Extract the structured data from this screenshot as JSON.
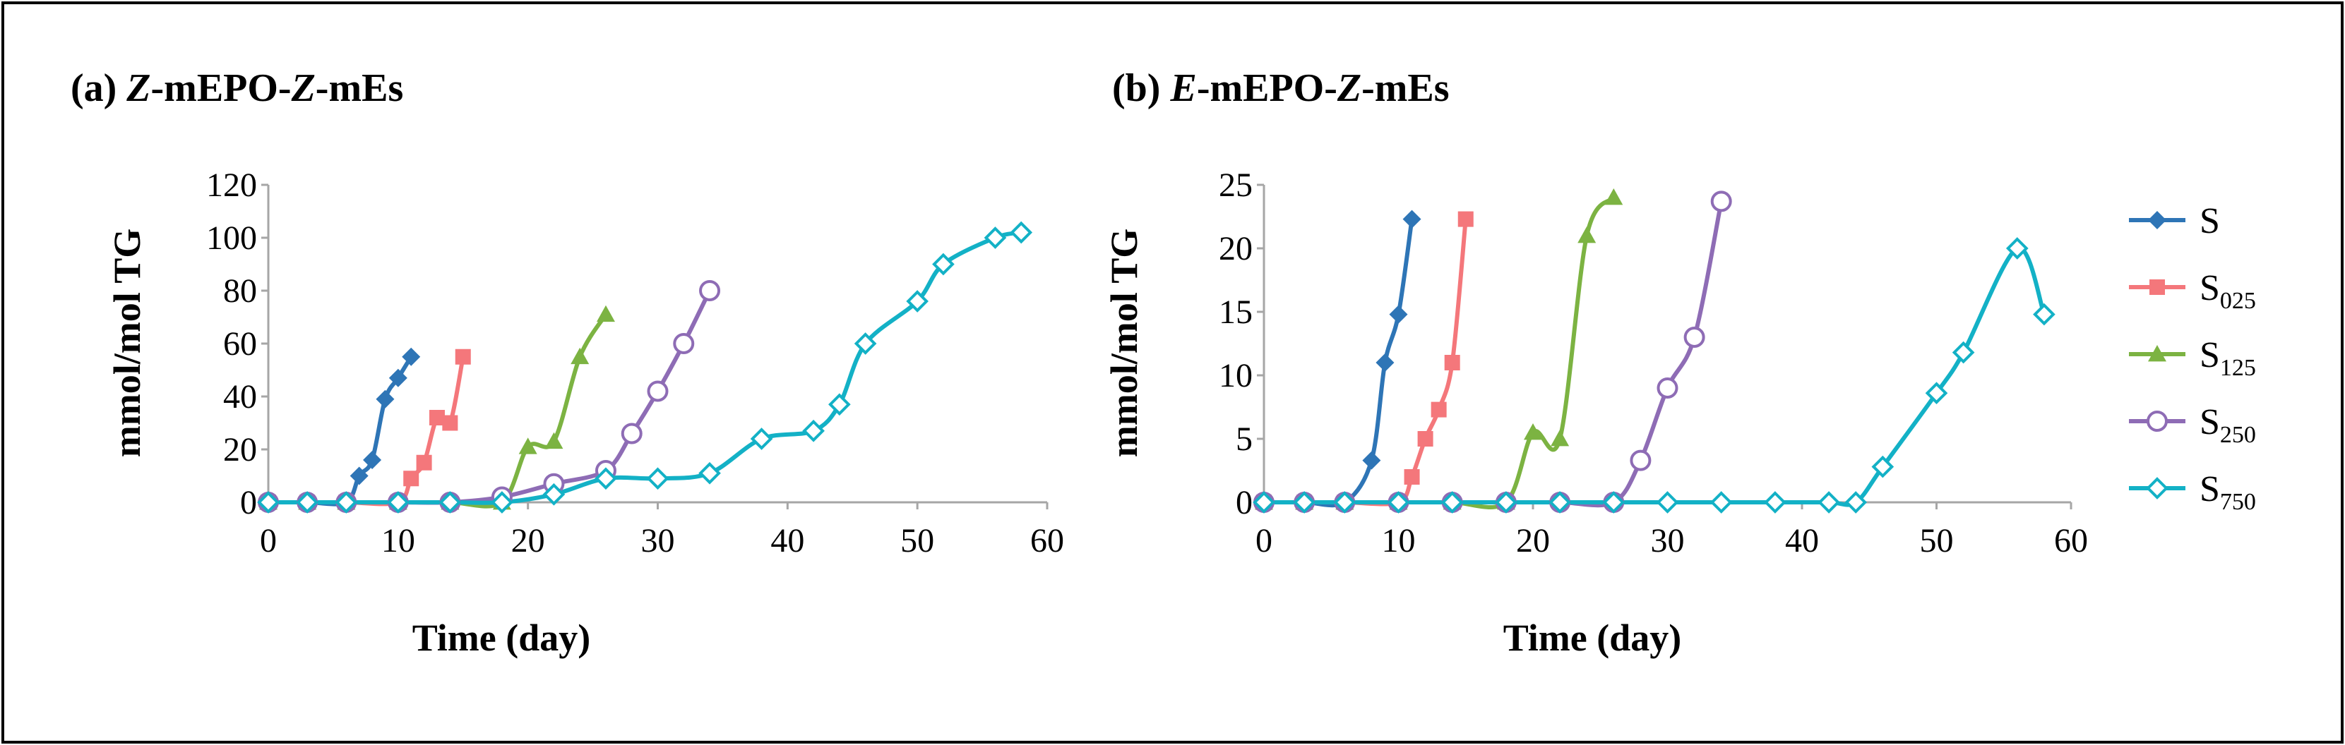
{
  "legend": [
    {
      "key": "S",
      "base": "S",
      "sub": "",
      "color": "#2e75b6",
      "marker": "diamond-filled"
    },
    {
      "key": "S025",
      "base": "S",
      "sub": "025",
      "color": "#f4777b",
      "marker": "square-filled"
    },
    {
      "key": "S125",
      "base": "S",
      "sub": "125",
      "color": "#7cb342",
      "marker": "triangle-filled"
    },
    {
      "key": "S250",
      "base": "S",
      "sub": "250",
      "color": "#8e6cb5",
      "marker": "circle-open"
    },
    {
      "key": "S750",
      "base": "S",
      "sub": "750",
      "color": "#13b1c6",
      "marker": "diamond-open"
    }
  ],
  "chart_data": [
    {
      "type": "line",
      "title_label": "(a) ",
      "title_italic": "Z",
      "title_mid": "-mEPO-",
      "title_italic2": "Z",
      "title_end": "-mEs",
      "xlabel": "Time (day)",
      "ylabel": "mmol/mol TG",
      "xlim": [
        0,
        60
      ],
      "ylim": [
        0,
        120
      ],
      "xticks": [
        0,
        10,
        20,
        30,
        40,
        50,
        60
      ],
      "yticks": [
        0,
        20,
        40,
        60,
        80,
        100,
        120
      ],
      "series": [
        {
          "name": "S",
          "x": [
            0,
            3,
            6,
            7,
            8,
            9,
            10,
            11
          ],
          "y": [
            0,
            0,
            0,
            10,
            16,
            39,
            47,
            55
          ]
        },
        {
          "name": "S025",
          "x": [
            0,
            3,
            6,
            10,
            11,
            12,
            13,
            14,
            15
          ],
          "y": [
            0,
            0,
            0,
            0,
            9,
            15,
            32,
            30,
            55
          ]
        },
        {
          "name": "S125",
          "x": [
            0,
            3,
            6,
            10,
            14,
            18,
            20,
            22,
            24,
            26
          ],
          "y": [
            0,
            0,
            0,
            0,
            0,
            0,
            21,
            23,
            55,
            71
          ]
        },
        {
          "name": "S250",
          "x": [
            0,
            3,
            6,
            10,
            14,
            18,
            22,
            26,
            28,
            30,
            32,
            34
          ],
          "y": [
            0,
            0,
            0,
            0,
            0,
            2,
            7,
            12,
            26,
            42,
            60,
            80
          ]
        },
        {
          "name": "S750",
          "x": [
            0,
            3,
            6,
            10,
            14,
            18,
            22,
            26,
            30,
            34,
            38,
            42,
            44,
            46,
            50,
            52,
            56,
            58
          ],
          "y": [
            0,
            0,
            0,
            0,
            0,
            0,
            3,
            9,
            9,
            11,
            24,
            27,
            37,
            60,
            76,
            90,
            100,
            102
          ]
        }
      ]
    },
    {
      "type": "line",
      "title_label": "(b) ",
      "title_italic": "E",
      "title_mid": "-mEPO-",
      "title_italic2": "Z",
      "title_end": "-mEs",
      "xlabel": "Time (day)",
      "ylabel": "mmol/mol TG",
      "xlim": [
        0,
        60
      ],
      "ylim": [
        0,
        25
      ],
      "xticks": [
        0,
        10,
        20,
        30,
        40,
        50,
        60
      ],
      "yticks": [
        0,
        5,
        10,
        15,
        20,
        25
      ],
      "series": [
        {
          "name": "S",
          "x": [
            0,
            3,
            6,
            8,
            9,
            10,
            11
          ],
          "y": [
            0,
            0,
            0,
            3.3,
            11,
            14.8,
            22.3
          ]
        },
        {
          "name": "S025",
          "x": [
            0,
            3,
            6,
            10,
            11,
            12,
            13,
            14,
            15
          ],
          "y": [
            0,
            0,
            0,
            0,
            2,
            5,
            7.3,
            11,
            22.3
          ]
        },
        {
          "name": "S125",
          "x": [
            0,
            3,
            6,
            10,
            14,
            18,
            20,
            22,
            24,
            26
          ],
          "y": [
            0,
            0,
            0,
            0,
            0,
            0,
            5.5,
            5,
            21,
            24
          ]
        },
        {
          "name": "S250",
          "x": [
            0,
            3,
            6,
            10,
            14,
            18,
            22,
            26,
            28,
            30,
            32,
            34
          ],
          "y": [
            0,
            0,
            0,
            0,
            0,
            0,
            0,
            0,
            3.3,
            9,
            13,
            23.7
          ]
        },
        {
          "name": "S750",
          "x": [
            0,
            3,
            6,
            10,
            14,
            18,
            22,
            26,
            30,
            34,
            38,
            42,
            44,
            46,
            50,
            52,
            56,
            58
          ],
          "y": [
            0,
            0,
            0,
            0,
            0,
            0,
            0,
            0,
            0,
            0,
            0,
            0,
            0,
            2.8,
            8.6,
            11.8,
            20,
            14.8
          ]
        }
      ]
    }
  ]
}
